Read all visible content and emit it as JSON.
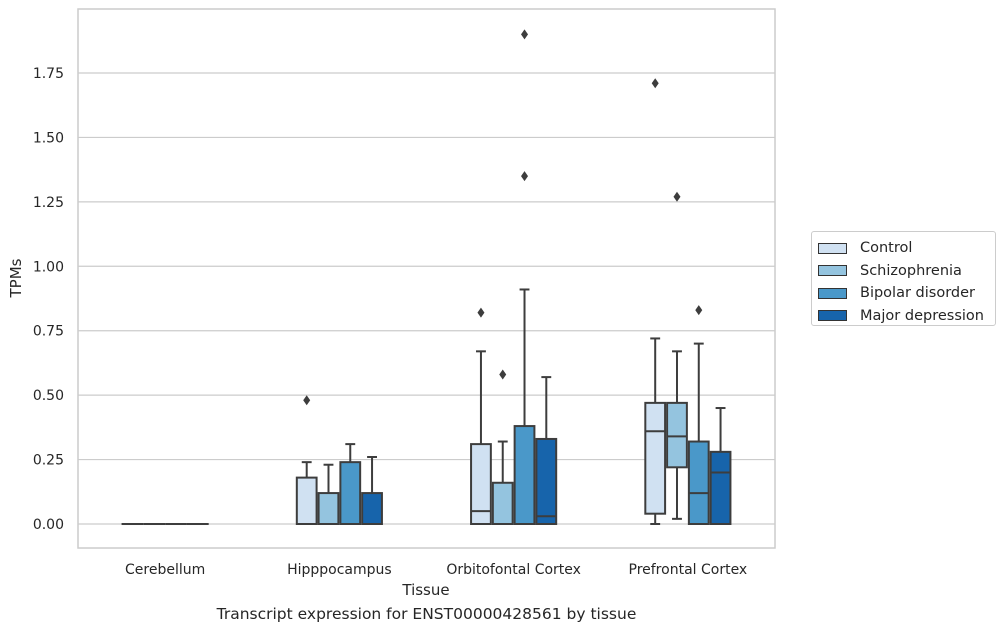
{
  "chart_data": {
    "type": "box",
    "title": "",
    "caption": "Transcript expression for ENST00000428561 by tissue",
    "xlabel": "Tissue",
    "ylabel": "TPMs",
    "ylim": [
      -0.09,
      2.0
    ],
    "yticks": [
      0.0,
      0.25,
      0.5,
      0.75,
      1.0,
      1.25,
      1.5,
      1.75
    ],
    "ytick_labels": [
      "0.00",
      "0.25",
      "0.50",
      "0.75",
      "1.00",
      "1.25",
      "1.50",
      "1.75"
    ],
    "grid": true,
    "legend_position": "right",
    "categories": [
      "Cerebellum",
      "Hipppocampus",
      "Orbitofontal Cortex",
      "Prefrontal Cortex"
    ],
    "series": [
      {
        "name": "Control",
        "color": "#d0e1f2",
        "boxes": [
          {
            "whislo": 0,
            "q1": 0,
            "med": 0,
            "q3": 0,
            "whishi": 0,
            "fliers": []
          },
          {
            "whislo": 0,
            "q1": 0,
            "med": 0,
            "q3": 0.18,
            "whishi": 0.24,
            "fliers": [
              0.48
            ]
          },
          {
            "whislo": 0,
            "q1": 0,
            "med": 0.05,
            "q3": 0.31,
            "whishi": 0.67,
            "fliers": [
              0.82
            ]
          },
          {
            "whislo": 0,
            "q1": 0.04,
            "med": 0.36,
            "q3": 0.47,
            "whishi": 0.72,
            "fliers": [
              1.71
            ]
          }
        ]
      },
      {
        "name": "Schizophrenia",
        "color": "#94c4df",
        "boxes": [
          {
            "whislo": 0,
            "q1": 0,
            "med": 0,
            "q3": 0,
            "whishi": 0,
            "fliers": []
          },
          {
            "whislo": 0,
            "q1": 0,
            "med": 0,
            "q3": 0.12,
            "whishi": 0.23,
            "fliers": []
          },
          {
            "whislo": 0,
            "q1": 0,
            "med": 0,
            "q3": 0.16,
            "whishi": 0.32,
            "fliers": [
              0.58
            ]
          },
          {
            "whislo": 0.02,
            "q1": 0.22,
            "med": 0.34,
            "q3": 0.47,
            "whishi": 0.67,
            "fliers": [
              1.27
            ]
          }
        ]
      },
      {
        "name": "Bipolar disorder",
        "color": "#4a98c9",
        "boxes": [
          {
            "whislo": 0,
            "q1": 0,
            "med": 0,
            "q3": 0,
            "whishi": 0,
            "fliers": []
          },
          {
            "whislo": 0,
            "q1": 0,
            "med": 0,
            "q3": 0.24,
            "whishi": 0.31,
            "fliers": []
          },
          {
            "whislo": 0,
            "q1": 0,
            "med": 0,
            "q3": 0.38,
            "whishi": 0.91,
            "fliers": [
              1.35,
              1.9
            ]
          },
          {
            "whislo": 0,
            "q1": 0,
            "med": 0.12,
            "q3": 0.32,
            "whishi": 0.7,
            "fliers": [
              0.83
            ]
          }
        ]
      },
      {
        "name": "Major depression",
        "color": "#1764ab",
        "boxes": [
          {
            "whislo": 0,
            "q1": 0,
            "med": 0,
            "q3": 0,
            "whishi": 0,
            "fliers": []
          },
          {
            "whislo": 0,
            "q1": 0,
            "med": 0,
            "q3": 0.12,
            "whishi": 0.26,
            "fliers": []
          },
          {
            "whislo": 0,
            "q1": 0,
            "med": 0.03,
            "q3": 0.33,
            "whishi": 0.57,
            "fliers": []
          },
          {
            "whislo": 0,
            "q1": 0,
            "med": 0.2,
            "q3": 0.28,
            "whishi": 0.45,
            "fliers": []
          }
        ]
      }
    ]
  }
}
